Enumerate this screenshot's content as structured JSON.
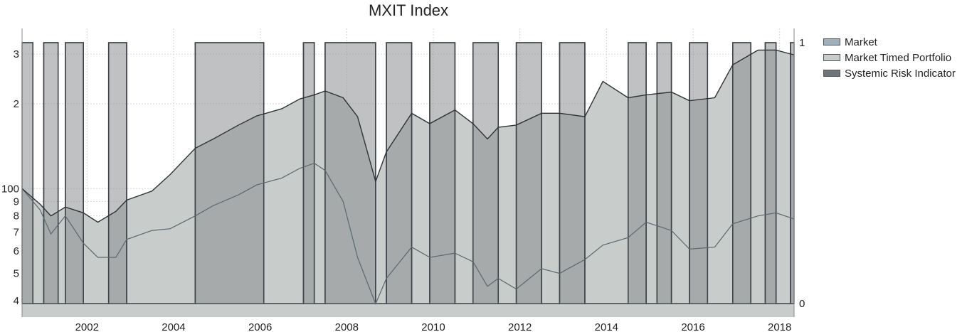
{
  "chart_data": {
    "type": "area",
    "title": "MXIT Index",
    "x_ticks": [
      "2002",
      "2004",
      "2006",
      "2008",
      "2010",
      "2012",
      "2014",
      "2016",
      "2018"
    ],
    "y_left_ticks": [
      "3",
      "2",
      "100",
      "9",
      "8",
      "7",
      "6",
      "5",
      "4"
    ],
    "y_right_ticks": [
      "1",
      "0"
    ],
    "y_left_scale": "log",
    "x_range": [
      "2001-01",
      "2018-11"
    ],
    "grid": true,
    "legend_position": "right",
    "colors": {
      "market": "#9eb0bc",
      "portfolio": "#c8ccca",
      "indicator": "#5c6368",
      "indicator_fill": "#8a8e91"
    },
    "series": [
      {
        "name": "Market",
        "x": [
          "2001-01",
          "2001-06",
          "2001-09",
          "2002-01",
          "2002-06",
          "2002-10",
          "2003-03",
          "2003-06",
          "2004-01",
          "2004-06",
          "2005-01",
          "2005-06",
          "2006-01",
          "2006-06",
          "2007-01",
          "2007-06",
          "2007-10",
          "2008-01",
          "2008-06",
          "2008-10",
          "2009-03",
          "2009-06",
          "2010-01",
          "2010-06",
          "2011-01",
          "2011-06",
          "2011-10",
          "2012-01",
          "2012-06",
          "2013-01",
          "2013-06",
          "2014-01",
          "2014-06",
          "2015-01",
          "2015-06",
          "2016-01",
          "2016-06",
          "2017-01",
          "2017-06",
          "2018-01",
          "2018-06",
          "2018-11"
        ],
        "values": [
          100,
          84,
          69,
          80,
          64,
          57,
          57,
          66,
          71,
          72,
          80,
          87,
          95,
          103,
          109,
          118,
          123,
          116,
          90,
          57,
          39,
          48,
          62,
          57,
          59,
          55,
          45,
          48,
          44,
          52,
          50,
          56,
          63,
          67,
          76,
          71,
          61,
          62,
          75,
          80,
          82,
          78
        ]
      },
      {
        "name": "Market Timed Portfolio",
        "x": [
          "2001-01",
          "2001-06",
          "2001-09",
          "2002-01",
          "2002-06",
          "2002-10",
          "2003-03",
          "2003-06",
          "2004-01",
          "2004-06",
          "2005-01",
          "2005-06",
          "2006-01",
          "2006-06",
          "2007-01",
          "2007-06",
          "2007-10",
          "2008-01",
          "2008-06",
          "2008-10",
          "2009-03",
          "2009-06",
          "2010-01",
          "2010-06",
          "2011-01",
          "2011-06",
          "2011-10",
          "2012-01",
          "2012-06",
          "2013-01",
          "2013-06",
          "2014-01",
          "2014-06",
          "2015-01",
          "2015-06",
          "2016-01",
          "2016-06",
          "2017-01",
          "2017-06",
          "2018-01",
          "2018-06",
          "2018-11"
        ],
        "values": [
          100,
          88,
          80,
          86,
          82,
          76,
          83,
          91,
          98,
          112,
          139,
          150,
          168,
          181,
          192,
          208,
          215,
          222,
          210,
          180,
          106,
          135,
          185,
          170,
          190,
          170,
          150,
          165,
          168,
          185,
          185,
          180,
          240,
          210,
          215,
          220,
          205,
          210,
          275,
          310,
          310,
          298
        ]
      },
      {
        "name": "Systemic Risk Indicator",
        "x": [
          "2001-01",
          "2001-04",
          "2001-07",
          "2001-11",
          "2002-01",
          "2002-06",
          "2003-01",
          "2003-06",
          "2005-01",
          "2006-08",
          "2007-07",
          "2007-10",
          "2008-01",
          "2009-03",
          "2009-06",
          "2010-01",
          "2010-06",
          "2011-01",
          "2011-06",
          "2012-01",
          "2012-06",
          "2013-01",
          "2013-06",
          "2014-01",
          "2015-01",
          "2015-06",
          "2015-09",
          "2016-01",
          "2016-06",
          "2016-11",
          "2017-06",
          "2017-11",
          "2018-03",
          "2018-06",
          "2018-10"
        ],
        "values": [
          1,
          0,
          1,
          0,
          1,
          0,
          1,
          0,
          1,
          0,
          1,
          0,
          1,
          0,
          1,
          0,
          1,
          0,
          1,
          0,
          1,
          0,
          1,
          0,
          1,
          0,
          1,
          0,
          1,
          0,
          1,
          0,
          1,
          0,
          1
        ]
      }
    ]
  },
  "legend": [
    {
      "label": "Market",
      "color": "#9eb0bc"
    },
    {
      "label": "Market Timed Portfolio",
      "color": "#c8ccca"
    },
    {
      "label": "Systemic Risk Indicator",
      "color": "#6e757a"
    }
  ]
}
